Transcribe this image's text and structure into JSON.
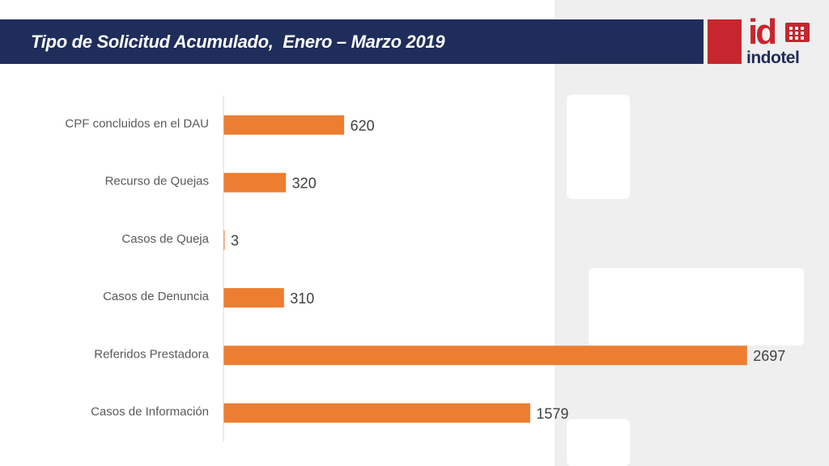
{
  "header": {
    "title": "Tipo de Solicitud Acumulado,  Enero – Marzo 2019"
  },
  "logo": {
    "mark": "id",
    "word": "indotel",
    "icon": "grid-dots-icon"
  },
  "colors": {
    "title_bar": "#1f2d5a",
    "bar": "#ed7d31",
    "brand_red": "#c6262e",
    "brand_navy": "#1f2d5a"
  },
  "chart_data": {
    "type": "bar",
    "orientation": "horizontal",
    "categories": [
      "CPF concluidos en el DAU",
      "Recurso de Quejas",
      "Casos de Queja",
      "Casos de Denuncia",
      "Referidos Prestadora",
      "Casos de Información"
    ],
    "values": [
      620,
      320,
      3,
      310,
      2697,
      1579
    ],
    "title": "Tipo de Solicitud Acumulado,  Enero – Marzo 2019",
    "xlabel": "",
    "ylabel": "",
    "xlim": [
      0,
      2700
    ],
    "grid": false,
    "legend": "none",
    "data_labels": true
  }
}
